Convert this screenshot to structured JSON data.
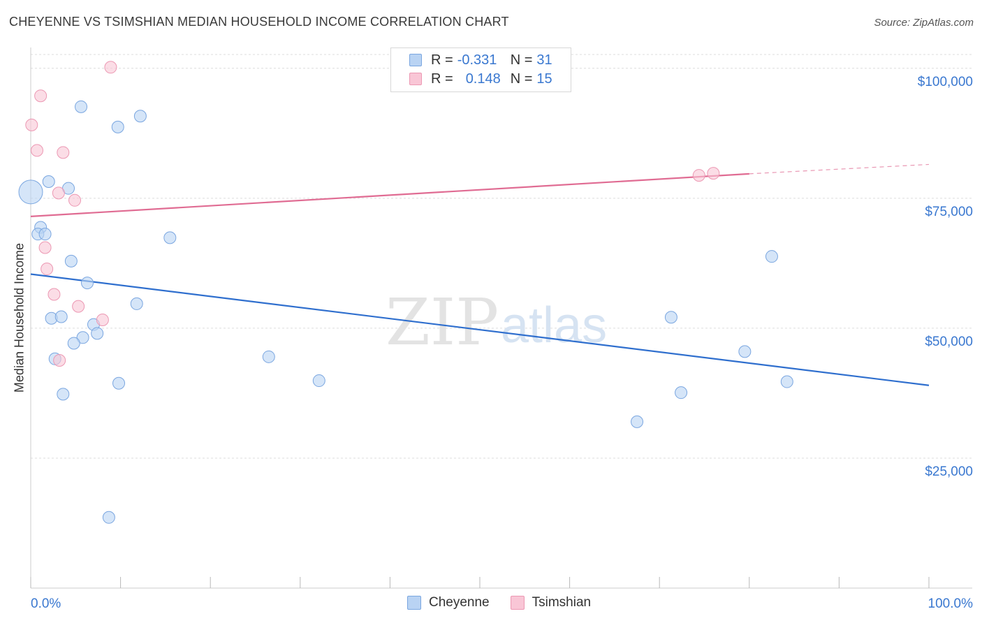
{
  "title": "CHEYENNE VS TSIMSHIAN MEDIAN HOUSEHOLD INCOME CORRELATION CHART",
  "source": "Source: ZipAtlas.com",
  "watermark": {
    "zip": "ZIP",
    "atlas": "atlas"
  },
  "legend": {
    "r_label": "R =",
    "n_label": "N =",
    "rows": [
      {
        "series": "Cheyenne",
        "r": "-0.331",
        "n": "31"
      },
      {
        "series": "Tsimshian",
        "r": "0.148",
        "n": "15"
      }
    ]
  },
  "colors": {
    "cheyenne_fill": "#b9d3f3",
    "cheyenne_stroke": "#7aa6e0",
    "cheyenne_line": "#2f6fce",
    "tsimshian_fill": "#f9c6d6",
    "tsimshian_stroke": "#ec98b3",
    "tsimshian_line": "#e06c93",
    "tick_label": "#3a78d0",
    "grid": "#dcdcdc"
  },
  "chart_data": {
    "type": "scatter",
    "title": "CHEYENNE VS TSIMSHIAN MEDIAN HOUSEHOLD INCOME CORRELATION CHART",
    "xlabel": "",
    "ylabel": "Median Household Income",
    "xlim": [
      0,
      100
    ],
    "ylim": [
      0,
      104000
    ],
    "x_tick_labels": [
      "0.0%",
      "100.0%"
    ],
    "y_ticks": [
      25000,
      50000,
      75000,
      100000
    ],
    "y_tick_labels": [
      "$25,000",
      "$50,000",
      "$75,000",
      "$100,000"
    ],
    "grid": true,
    "legend_position": "top-center",
    "series": [
      {
        "name": "Cheyenne",
        "points": [
          {
            "x": 0.0,
            "y": 76200,
            "big": true
          },
          {
            "x": 2.0,
            "y": 78200
          },
          {
            "x": 1.1,
            "y": 69400
          },
          {
            "x": 0.8,
            "y": 68100
          },
          {
            "x": 1.6,
            "y": 68100
          },
          {
            "x": 4.2,
            "y": 76900
          },
          {
            "x": 5.6,
            "y": 92600
          },
          {
            "x": 9.7,
            "y": 88700
          },
          {
            "x": 12.2,
            "y": 90800
          },
          {
            "x": 15.5,
            "y": 67400
          },
          {
            "x": 4.5,
            "y": 62900
          },
          {
            "x": 6.3,
            "y": 58700
          },
          {
            "x": 11.8,
            "y": 54700
          },
          {
            "x": 2.3,
            "y": 51900
          },
          {
            "x": 3.4,
            "y": 52200
          },
          {
            "x": 7.0,
            "y": 50700
          },
          {
            "x": 7.4,
            "y": 49000
          },
          {
            "x": 5.8,
            "y": 48200
          },
          {
            "x": 4.8,
            "y": 47100
          },
          {
            "x": 2.7,
            "y": 44100
          },
          {
            "x": 26.5,
            "y": 44500
          },
          {
            "x": 9.8,
            "y": 39400
          },
          {
            "x": 32.1,
            "y": 39900
          },
          {
            "x": 3.6,
            "y": 37300
          },
          {
            "x": 8.7,
            "y": 13600
          },
          {
            "x": 71.3,
            "y": 52100
          },
          {
            "x": 72.4,
            "y": 37600
          },
          {
            "x": 67.5,
            "y": 32000
          },
          {
            "x": 82.5,
            "y": 63800
          },
          {
            "x": 79.5,
            "y": 45500
          },
          {
            "x": 84.2,
            "y": 39700
          }
        ],
        "trend": {
          "x0": 0,
          "y0": 60400,
          "x1": 100,
          "y1": 39000
        }
      },
      {
        "name": "Tsimshian",
        "points": [
          {
            "x": 8.9,
            "y": 100200
          },
          {
            "x": 1.1,
            "y": 94700
          },
          {
            "x": 0.1,
            "y": 89100
          },
          {
            "x": 0.7,
            "y": 84200
          },
          {
            "x": 3.6,
            "y": 83800
          },
          {
            "x": 3.1,
            "y": 76000
          },
          {
            "x": 4.9,
            "y": 74600
          },
          {
            "x": 1.6,
            "y": 65500
          },
          {
            "x": 1.8,
            "y": 61400
          },
          {
            "x": 2.6,
            "y": 56500
          },
          {
            "x": 5.3,
            "y": 54200
          },
          {
            "x": 8.0,
            "y": 51600
          },
          {
            "x": 3.2,
            "y": 43800
          },
          {
            "x": 74.4,
            "y": 79400
          },
          {
            "x": 76.0,
            "y": 79800
          }
        ],
        "trend": {
          "x0": 0,
          "y0": 71500,
          "x1": 80,
          "y1": 79700,
          "dashed_to_x": 100,
          "dashed_to_y": 81500
        }
      }
    ]
  }
}
